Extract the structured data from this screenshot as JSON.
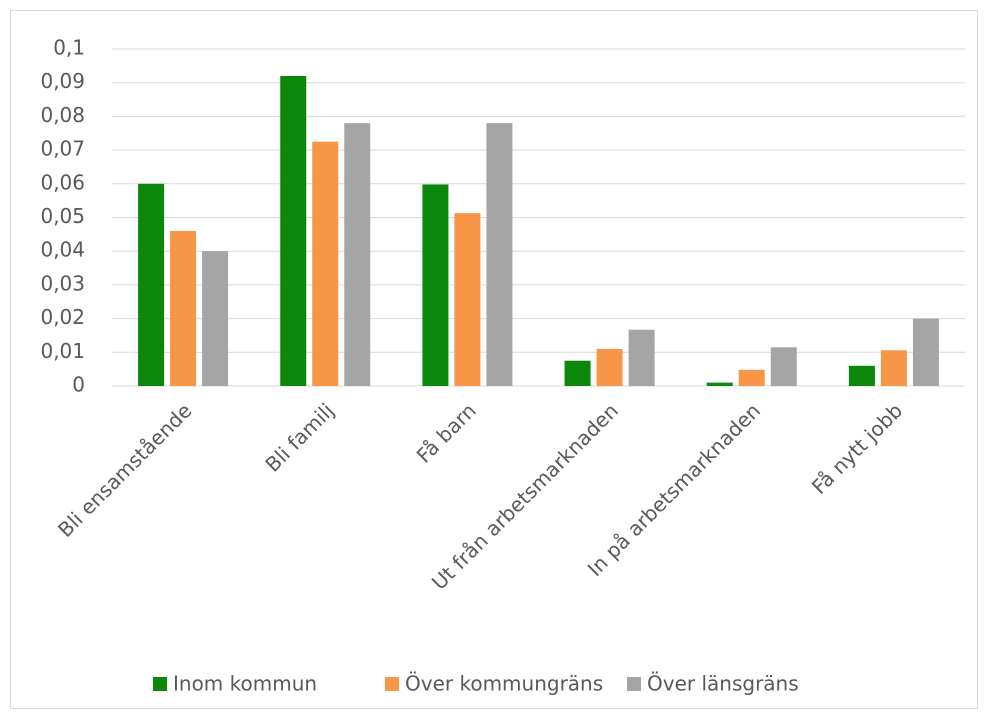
{
  "chart_data": {
    "type": "bar",
    "categories": [
      "Bli ensamstående",
      "Bli familj",
      "Få barn",
      "Ut från arbetsmarknaden",
      "In på arbetsmarknaden",
      "Få nytt jobb"
    ],
    "series": [
      {
        "name": "Inom kommun",
        "color": "#0b870b",
        "values": [
          0.06,
          0.092,
          0.0598,
          0.0075,
          0.001,
          0.006
        ]
      },
      {
        "name": "Över kommungräns",
        "color": "#f79646",
        "values": [
          0.046,
          0.0725,
          0.0513,
          0.011,
          0.0048,
          0.0106
        ]
      },
      {
        "name": "Över länsgräns",
        "color": "#a5a5a5",
        "values": [
          0.04,
          0.078,
          0.078,
          0.0167,
          0.0115,
          0.02
        ]
      }
    ],
    "ylim": [
      0,
      0.1
    ],
    "yticks": [
      0,
      {
        "value": 0.01,
        "label": "0,01"
      },
      {
        "value": 0.02,
        "label": "0,02"
      },
      {
        "value": 0.03,
        "label": "0,03"
      },
      {
        "value": 0.04,
        "label": "0,04"
      },
      {
        "value": 0.05,
        "label": "0,05"
      },
      {
        "value": 0.06,
        "label": "0,06"
      },
      {
        "value": 0.07,
        "label": "0,07"
      },
      {
        "value": 0.08,
        "label": "0,08"
      },
      {
        "value": 0.09,
        "label": "0,09"
      },
      {
        "value": 0.1,
        "label": "0,1"
      }
    ],
    "grid": true,
    "legend": "bottom"
  }
}
